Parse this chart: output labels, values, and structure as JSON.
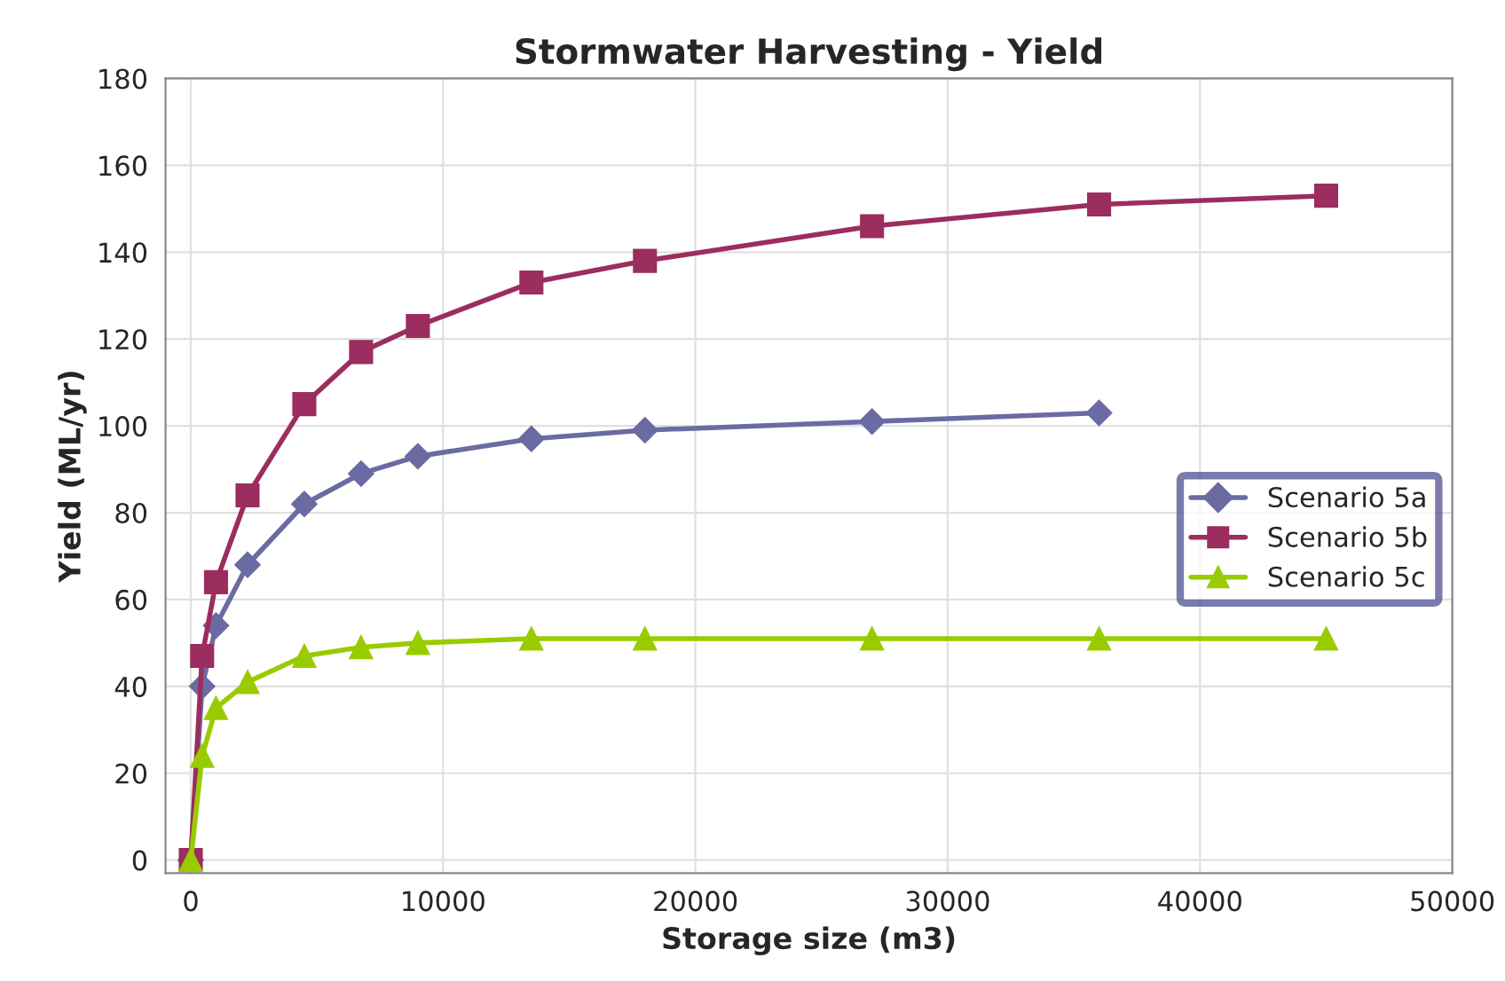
{
  "chart_data": {
    "type": "line",
    "title": "Stormwater Harvesting - Yield",
    "xlabel": "Storage size (m3)",
    "ylabel": "Yield (ML/yr)",
    "x": [
      0,
      450,
      1000,
      2250,
      4500,
      6750,
      9000,
      13500,
      18000,
      27000,
      36000,
      45000
    ],
    "series": [
      {
        "name": "Scenario 5a",
        "color": "#6b6ba3",
        "marker": "diamond",
        "values": [
          0,
          40,
          54,
          68,
          82,
          89,
          93,
          97,
          99,
          101,
          103,
          null
        ]
      },
      {
        "name": "Scenario 5b",
        "color": "#9b2d5f",
        "marker": "square",
        "values": [
          0,
          47,
          64,
          84,
          105,
          117,
          123,
          133,
          138,
          146,
          151,
          153
        ]
      },
      {
        "name": "Scenario 5c",
        "color": "#99cc00",
        "marker": "triangle",
        "values": [
          0,
          24,
          35,
          41,
          47,
          49,
          50,
          51,
          51,
          51,
          51,
          51
        ]
      }
    ],
    "xlim": [
      -1000,
      50000
    ],
    "xticks": [
      0,
      10000,
      20000,
      30000,
      40000,
      50000
    ],
    "ylim": [
      -3,
      180
    ],
    "yticks": [
      0,
      20,
      40,
      60,
      80,
      100,
      120,
      140,
      160,
      180
    ],
    "grid": true,
    "legend": "right",
    "line_style": "solid"
  }
}
